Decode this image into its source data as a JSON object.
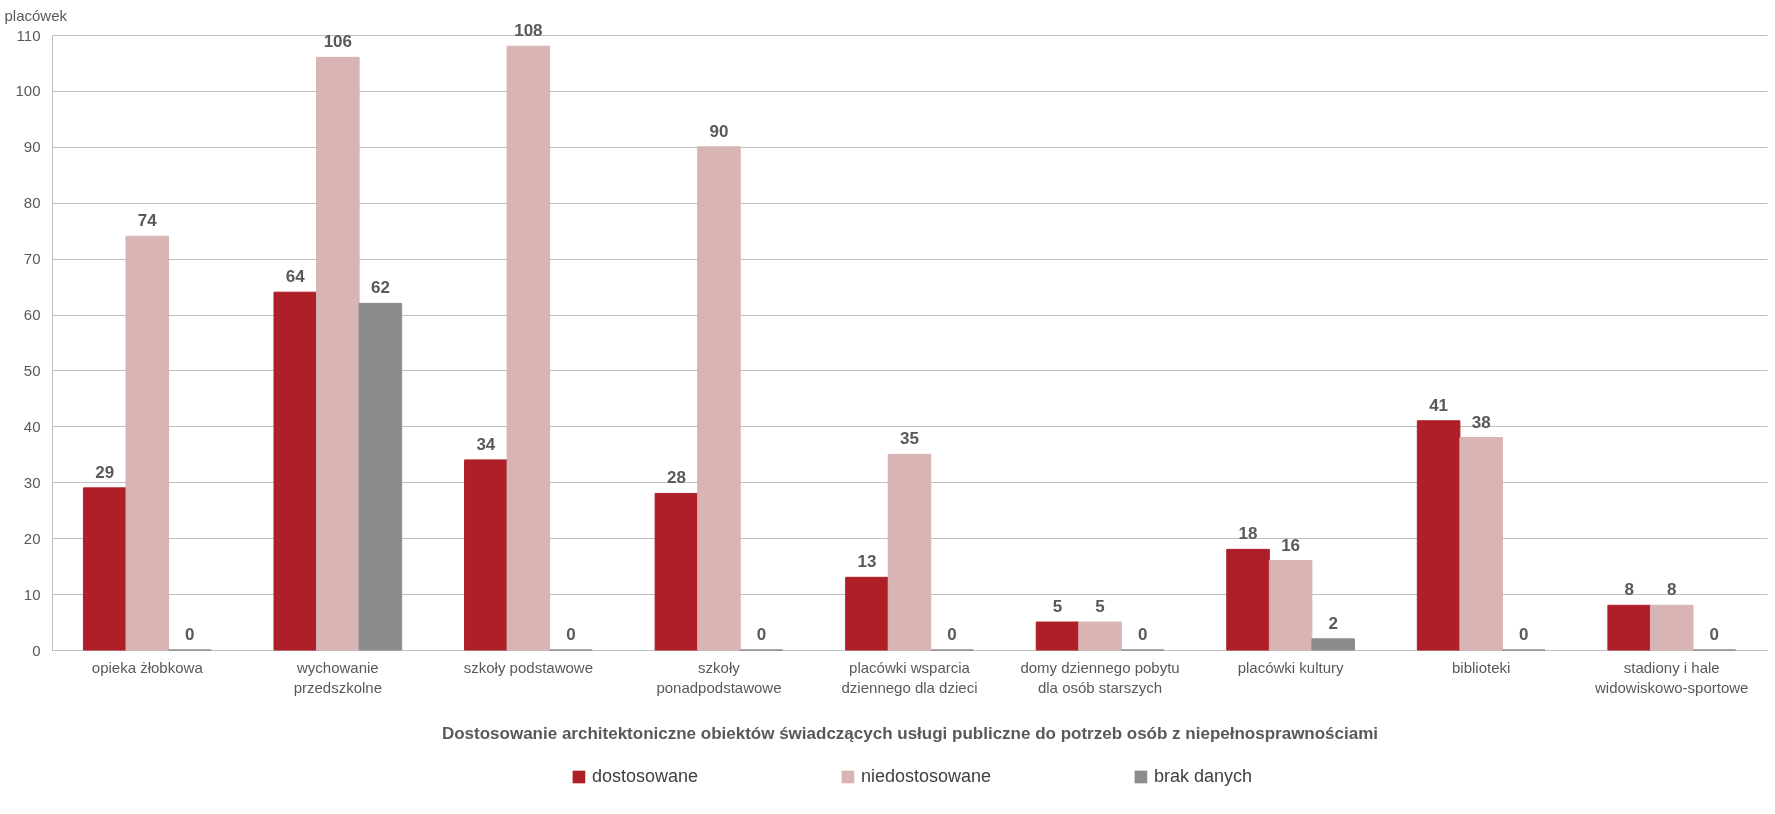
{
  "chart_data": {
    "type": "bar",
    "ylabel": "placówek",
    "xlabel": "Dostosowanie architektoniczne obiektów świadczących usługi publiczne do potrzeb osób z niepełnosprawnościami",
    "categories": [
      "opieka żłobkowa",
      "wychowanie przedszkolne",
      "szkoły podstawowe",
      "szkoły ponadpodstawowe",
      "placówki wsparcia dziennego dla dzieci",
      "domy dziennego pobytu dla osób starszych",
      "placówki kultury",
      "biblioteki",
      "stadiony i hale widowiskowo-sportowe"
    ],
    "series": [
      {
        "name": "dostosowane",
        "color": "#ae1f27",
        "values": [
          29,
          64,
          34,
          28,
          13,
          5,
          18,
          41,
          8
        ]
      },
      {
        "name": "niedostosowane",
        "color": "#d8b4b4",
        "values": [
          74,
          106,
          108,
          90,
          35,
          5,
          16,
          38,
          8
        ]
      },
      {
        "name": "brak danych",
        "color": "#8c8c8c",
        "values": [
          0,
          62,
          0,
          0,
          0,
          0,
          2,
          0,
          0
        ]
      }
    ],
    "ylim": [
      0,
      110
    ],
    "yticks": [
      0,
      10,
      20,
      30,
      40,
      50,
      60,
      70,
      80,
      90,
      100,
      110
    ],
    "grid": "y",
    "legend": "bottom",
    "data_labels": true
  }
}
